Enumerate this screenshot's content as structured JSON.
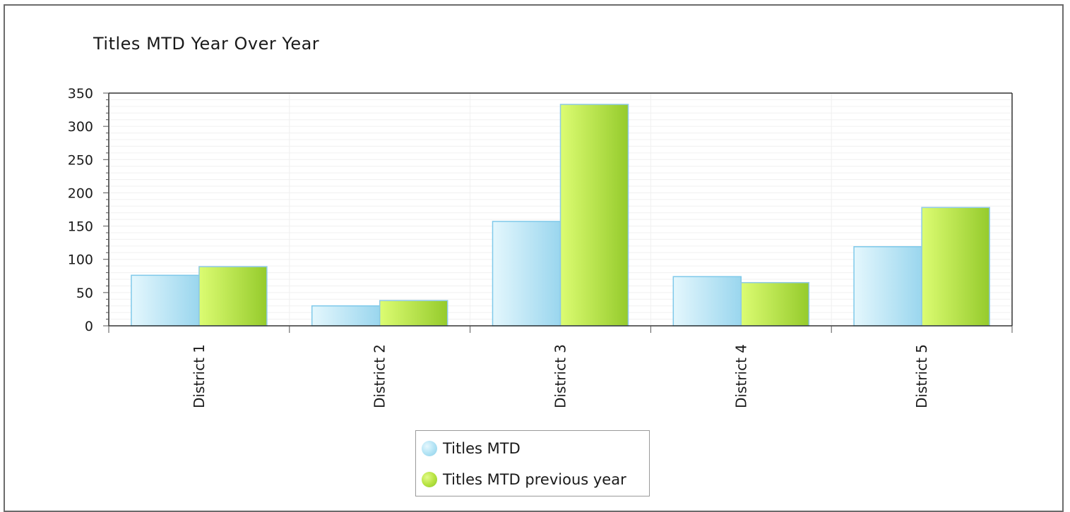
{
  "chart_data": {
    "type": "bar",
    "title": "Titles MTD Year Over Year",
    "xlabel": "",
    "ylabel": "",
    "categories": [
      "District 1",
      "District 2",
      "District 3",
      "District 4",
      "District 5"
    ],
    "series": [
      {
        "name": "Titles MTD",
        "values": [
          76,
          30,
          157,
          74,
          119
        ]
      },
      {
        "name": "Titles MTD previous year",
        "values": [
          89,
          38,
          333,
          65,
          178
        ]
      }
    ],
    "ylim": [
      0,
      350
    ],
    "yticks": [
      "0",
      "50",
      "100",
      "150",
      "200",
      "250",
      "300",
      "350"
    ],
    "grid": true,
    "legend_position": "bottom-center",
    "colors": {
      "series1_light": "#dff4fc",
      "series1_dark": "#9bd7ee",
      "series1_border": "#7fc9ea",
      "series2_light": "#d9fb6e",
      "series2_dark": "#97cc2e",
      "series2_border": "#8ec9e6"
    }
  }
}
